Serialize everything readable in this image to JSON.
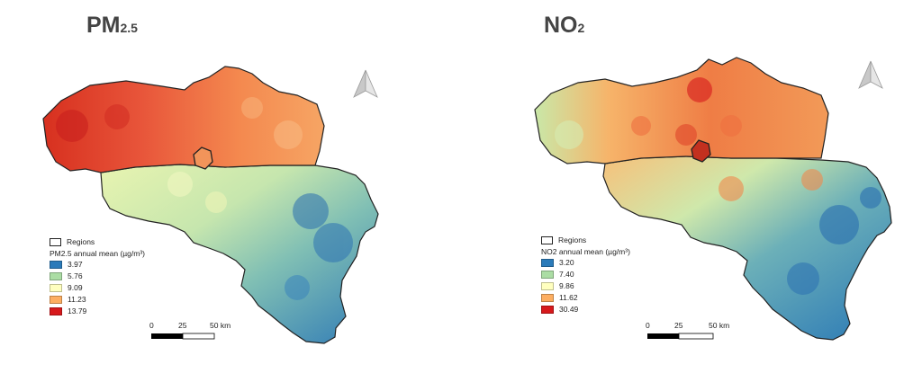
{
  "maps": [
    {
      "title_main": "PM",
      "title_sub": "2.5",
      "legend": {
        "regions_label": "Regions",
        "title": "PM2.5 annual mean (µg/m³)",
        "classes": [
          {
            "label": "3.97",
            "color": "#2b7bba"
          },
          {
            "label": "5.76",
            "color": "#abdda4"
          },
          {
            "label": "9.09",
            "color": "#ffffbf"
          },
          {
            "label": "11.23",
            "color": "#fdae61"
          },
          {
            "label": "13.79",
            "color": "#d7191c"
          }
        ]
      },
      "scale": {
        "ticks": [
          "0",
          "25",
          "50 km"
        ]
      }
    },
    {
      "title_main": "NO",
      "title_sub": "2",
      "legend": {
        "regions_label": "Regions",
        "title": "NO2 annual mean (µg/m³)",
        "classes": [
          {
            "label": "3.20",
            "color": "#2b7bba"
          },
          {
            "label": "7.40",
            "color": "#abdda4"
          },
          {
            "label": "9.86",
            "color": "#ffffbf"
          },
          {
            "label": "11.62",
            "color": "#fdae61"
          },
          {
            "label": "30.49",
            "color": "#d7191c"
          }
        ]
      },
      "scale": {
        "ticks": [
          "0",
          "25",
          "50 km"
        ]
      }
    }
  ],
  "north_arrow_icon": "north-arrow-icon"
}
